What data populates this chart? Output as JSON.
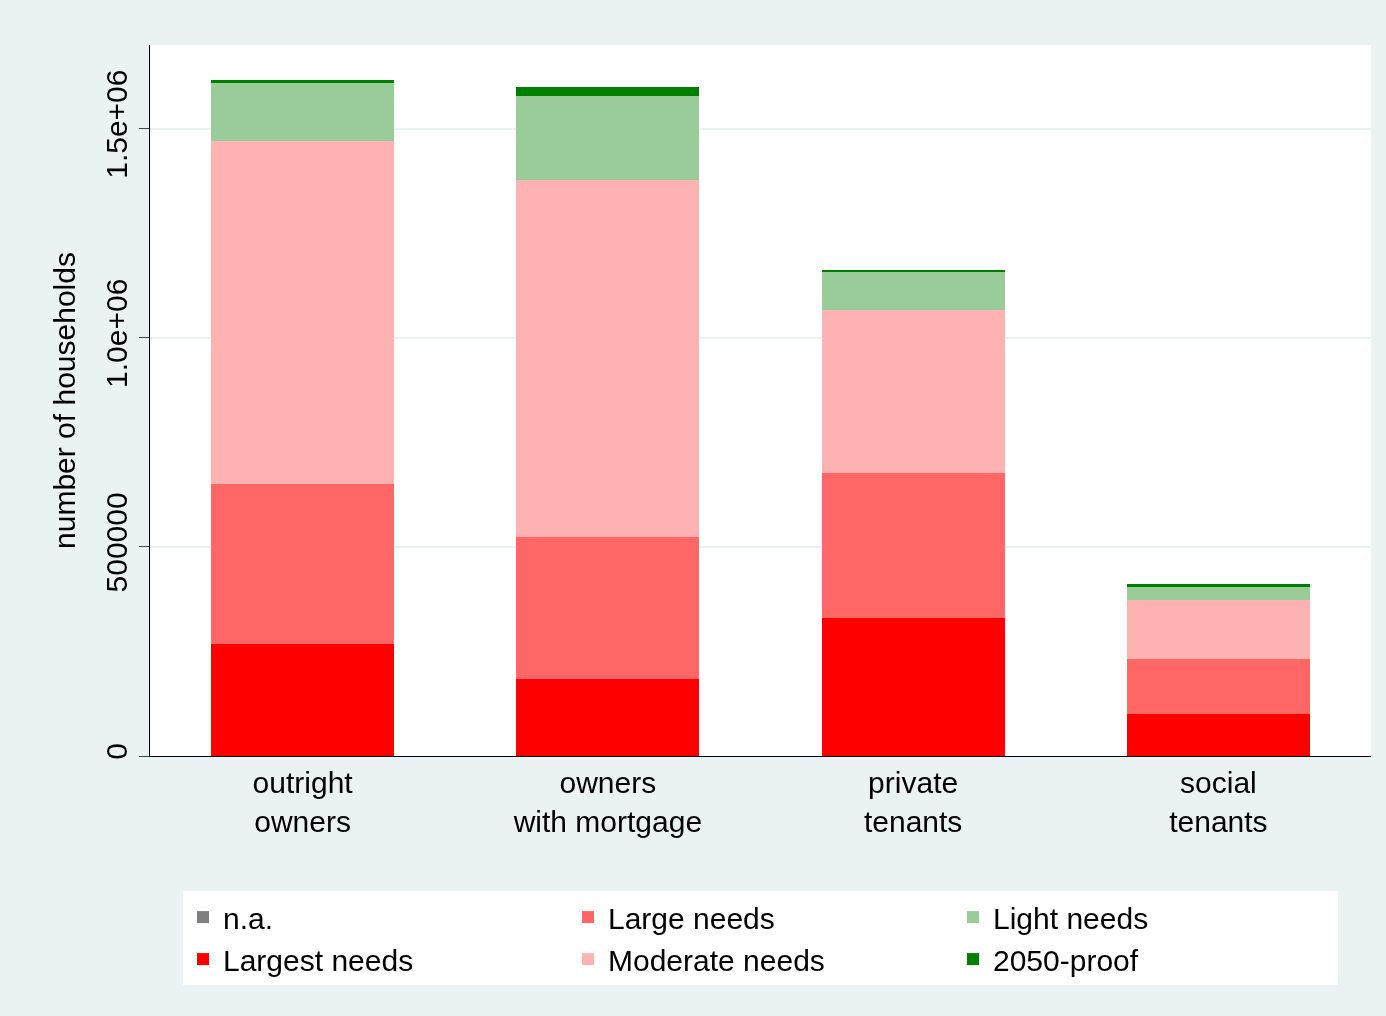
{
  "chart_data": {
    "type": "bar",
    "stacked": true,
    "ylabel": "number of households",
    "categories": [
      "outright\nowners",
      "owners\nwith mortgage",
      "private\ntenants",
      "social\ntenants"
    ],
    "series": [
      {
        "name": "n.a.",
        "color": "#808080",
        "values": [
          0,
          0,
          0,
          0
        ]
      },
      {
        "name": "Largest needs",
        "color": "#ff0000",
        "values": [
          268000,
          184000,
          330000,
          100000
        ]
      },
      {
        "name": "Large needs",
        "color": "#ff6666",
        "values": [
          383000,
          340000,
          347000,
          132000
        ]
      },
      {
        "name": "Moderate needs",
        "color": "#ffb2b2",
        "values": [
          820000,
          854000,
          390000,
          141000
        ]
      },
      {
        "name": "Light needs",
        "color": "#99cc99",
        "values": [
          139000,
          201000,
          91000,
          31000
        ]
      },
      {
        "name": "2050-proof",
        "color": "#008000",
        "values": [
          7000,
          21000,
          2000,
          7000
        ]
      }
    ],
    "ylim": [
      0,
      1700000
    ],
    "yticks": [
      0,
      500000,
      {
        "value": 1000000,
        "label": "1.0e+06"
      },
      {
        "value": 1500000,
        "label": "1.5e+06"
      }
    ],
    "grid": "y",
    "legend": "bottom"
  }
}
